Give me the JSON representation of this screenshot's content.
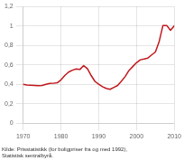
{
  "chart_data": {
    "type": "line",
    "annotation": "Kilde: Prisstatistikk (for boligpriser fra og med 1992),\nStatistisk sentralbyrå.",
    "x": [
      1970,
      1971,
      1972,
      1973,
      1974,
      1975,
      1976,
      1977,
      1978,
      1979,
      1980,
      1981,
      1982,
      1983,
      1984,
      1985,
      1986,
      1987,
      1988,
      1989,
      1990,
      1991,
      1992,
      1993,
      1994,
      1995,
      1996,
      1997,
      1998,
      1999,
      2000,
      2001,
      2002,
      2003,
      2004,
      2005,
      2006,
      2007,
      2008,
      2009,
      2010
    ],
    "values": [
      0.4,
      0.392,
      0.39,
      0.388,
      0.385,
      0.388,
      0.4,
      0.408,
      0.41,
      0.415,
      0.445,
      0.49,
      0.525,
      0.545,
      0.558,
      0.552,
      0.592,
      0.562,
      0.49,
      0.43,
      0.4,
      0.375,
      0.358,
      0.348,
      0.368,
      0.388,
      0.432,
      0.48,
      0.542,
      0.582,
      0.622,
      0.652,
      0.66,
      0.67,
      0.702,
      0.732,
      0.84,
      1.005,
      1.005,
      0.955,
      1.002
    ],
    "color": "#c0191e",
    "xlim": [
      1970,
      2010
    ],
    "xticks": [
      1970,
      1980,
      1990,
      2000,
      2010
    ],
    "ylim": [
      0.0,
      1.2
    ],
    "yticks": [
      0,
      {
        "value": 0.2,
        "label": "0,2"
      },
      {
        "value": 0.4,
        "label": "0,4"
      },
      {
        "value": 0.6,
        "label": "0,6"
      },
      {
        "value": 0.8,
        "label": "0,8"
      },
      1,
      {
        "value": 1.2,
        "label": "1,2"
      }
    ],
    "grid": true
  }
}
